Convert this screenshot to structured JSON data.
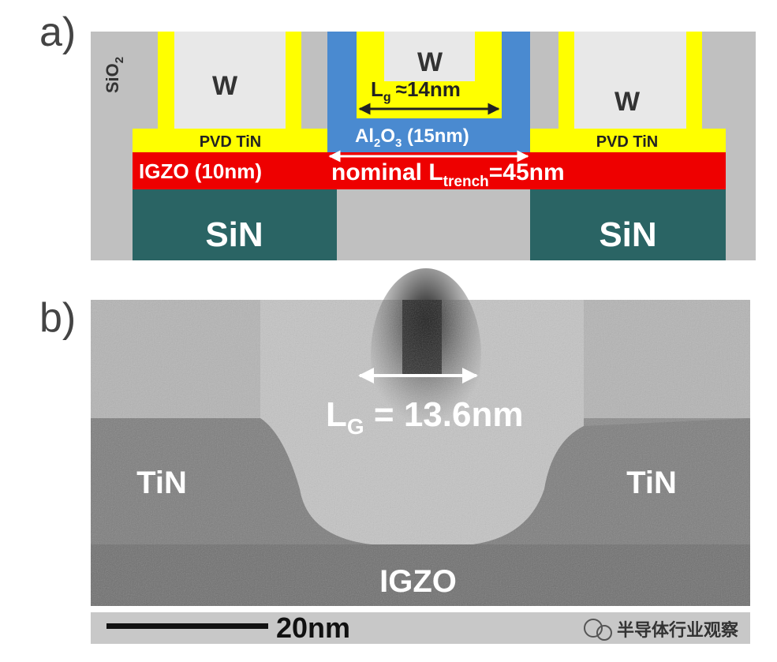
{
  "panel_a": {
    "label": "a)",
    "sio2": {
      "base": "SiO",
      "sub": "2"
    },
    "w_left": "W",
    "w_center": "W",
    "w_right": "W",
    "lg": {
      "base": "L",
      "sub": "g",
      "rest": "≈14nm"
    },
    "pvd_left": "PVD TiN",
    "pvd_right": "PVD TiN",
    "al2o3": {
      "a": "Al",
      "s1": "2",
      "b": "O",
      "s2": "3",
      "rest": " (15nm)"
    },
    "igzo": "IGZO (10nm)",
    "ltrench": {
      "pre": "nominal L",
      "sub": "trench",
      "rest": "=45nm"
    },
    "sin_left": "SiN",
    "sin_right": "SiN"
  },
  "panel_b": {
    "label": "b)",
    "lg": {
      "base": "L",
      "sub": "G",
      "rest": " = 13.6nm"
    },
    "tin_left": "TiN",
    "tin_right": "TiN",
    "igzo": "IGZO",
    "scale": "20nm"
  },
  "watermark": "半导体行业观察"
}
